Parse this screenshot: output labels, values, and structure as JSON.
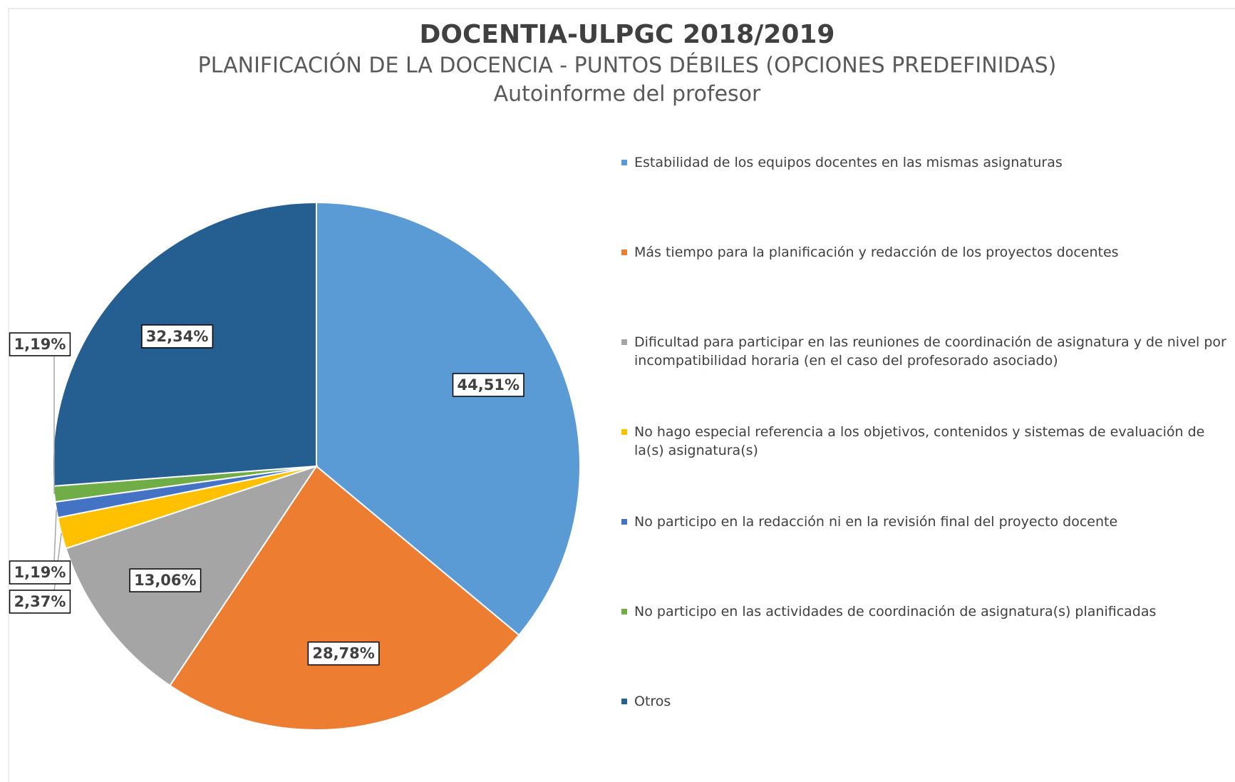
{
  "chart_data": {
    "type": "pie",
    "title": "DOCENTIA-ULPGC 2018/2019",
    "subtitle": "PLANIFICACIÓN DE LA DOCENCIA - PUNTOS DÉBILES (OPCIONES PREDEFINIDAS)",
    "subtitle2": "Autoinforme del profesor",
    "categories": [
      "Estabilidad de los equipos docentes en las mismas asignaturas",
      "Más tiempo para la planificación y redacción de los proyectos docentes",
      "Dificultad para participar en las reuniones de coordinación de asignatura y de nivel por incompatibilidad horaria (en el caso del profesorado asociado)",
      "No hago especial referencia a los objetivos, contenidos y sistemas de evaluación de la(s) asignatura(s)",
      "No participo en la redacción ni en la revisión final del proyecto docente",
      "No participo en las actividades de coordinación de asignatura(s) planificadas",
      "Otros"
    ],
    "values": [
      44.51,
      28.78,
      13.06,
      2.37,
      1.19,
      1.19,
      32.34
    ],
    "value_labels": [
      "44,51%",
      "28,78%",
      "13,06%",
      "2,37%",
      "1,19%",
      "1,19%",
      "32,34%"
    ],
    "colors": [
      "#5b9bd5",
      "#ed7d31",
      "#a5a5a5",
      "#ffc000",
      "#4472c4",
      "#70ad47",
      "#255e91"
    ],
    "legend": "right"
  }
}
